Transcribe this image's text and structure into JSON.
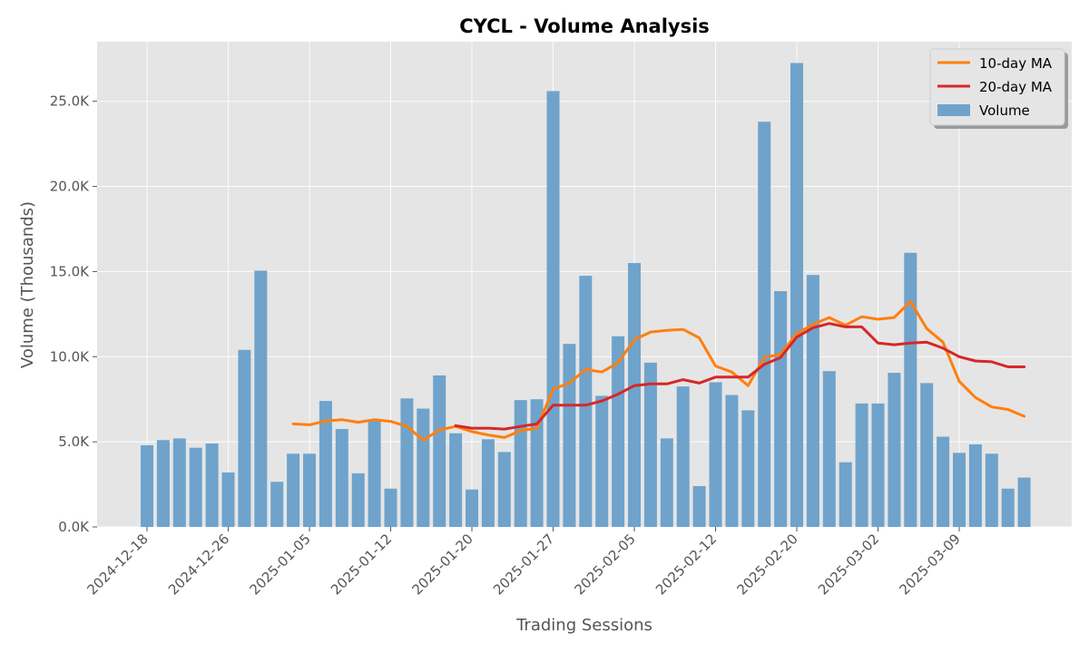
{
  "chart_data": {
    "type": "bar",
    "title": "CYCL - Volume Analysis",
    "xlabel": "Trading Sessions",
    "ylabel": "Volume (Thousands)",
    "ylim": [
      0,
      28.5
    ],
    "y_ticks": [
      0,
      5,
      10,
      15,
      20,
      25
    ],
    "y_tick_labels": [
      "0.0K",
      "5.0K",
      "10.0K",
      "15.0K",
      "20.0K",
      "25.0K"
    ],
    "x_tick_labels": [
      "2024-12-18",
      "2024-12-26",
      "2025-01-05",
      "2025-01-12",
      "2025-01-20",
      "2025-01-27",
      "2025-02-05",
      "2025-02-12",
      "2025-02-20",
      "2025-03-02",
      "2025-03-09"
    ],
    "x_tick_positions": [
      0,
      5,
      10,
      15,
      20,
      25,
      30,
      35,
      40,
      45,
      50
    ],
    "grid": true,
    "legend": "top-right",
    "series": [
      {
        "name": "Volume",
        "kind": "bar",
        "color": "#6fa3cb",
        "values": [
          4.8,
          5.1,
          5.2,
          4.65,
          4.9,
          3.2,
          10.4,
          15.05,
          2.65,
          4.3,
          4.3,
          7.4,
          5.75,
          3.15,
          6.3,
          2.25,
          7.55,
          6.95,
          8.9,
          5.5,
          2.2,
          5.15,
          4.4,
          7.45,
          7.5,
          25.6,
          10.75,
          14.75,
          7.7,
          11.2,
          15.5,
          9.65,
          5.2,
          8.25,
          2.4,
          8.5,
          7.75,
          6.85,
          23.8,
          13.85,
          27.25,
          14.8,
          9.15,
          3.8,
          7.25,
          7.25,
          9.05,
          16.1,
          8.45,
          5.3,
          4.35,
          4.85,
          4.3,
          2.25,
          2.9
        ]
      },
      {
        "name": "10-day MA",
        "kind": "line",
        "color": "#ff7f0e",
        "values": [
          null,
          null,
          null,
          null,
          null,
          null,
          null,
          null,
          null,
          6.05,
          6.0,
          6.22,
          6.3,
          6.15,
          6.3,
          6.2,
          5.9,
          5.1,
          5.7,
          5.9,
          5.6,
          5.4,
          5.25,
          5.65,
          5.8,
          8.1,
          8.45,
          9.25,
          9.1,
          9.65,
          11.0,
          11.45,
          11.55,
          11.6,
          11.1,
          9.45,
          9.1,
          8.3,
          9.95,
          10.15,
          11.35,
          11.9,
          12.3,
          11.85,
          12.35,
          12.2,
          12.3,
          13.25,
          11.65,
          10.85,
          8.55,
          7.6,
          7.05,
          6.9,
          6.5
        ]
      },
      {
        "name": "20-day MA",
        "kind": "line",
        "color": "#d62728",
        "values": [
          null,
          null,
          null,
          null,
          null,
          null,
          null,
          null,
          null,
          null,
          null,
          null,
          null,
          null,
          null,
          null,
          null,
          null,
          null,
          5.95,
          5.8,
          5.8,
          5.75,
          5.9,
          6.05,
          7.15,
          7.15,
          7.15,
          7.4,
          7.8,
          8.3,
          8.4,
          8.4,
          8.65,
          8.45,
          8.8,
          8.8,
          8.8,
          9.55,
          9.95,
          11.15,
          11.7,
          11.95,
          11.75,
          11.75,
          10.8,
          10.7,
          10.8,
          10.85,
          10.5,
          10.0,
          9.75,
          9.7,
          9.4,
          9.4
        ]
      }
    ]
  }
}
